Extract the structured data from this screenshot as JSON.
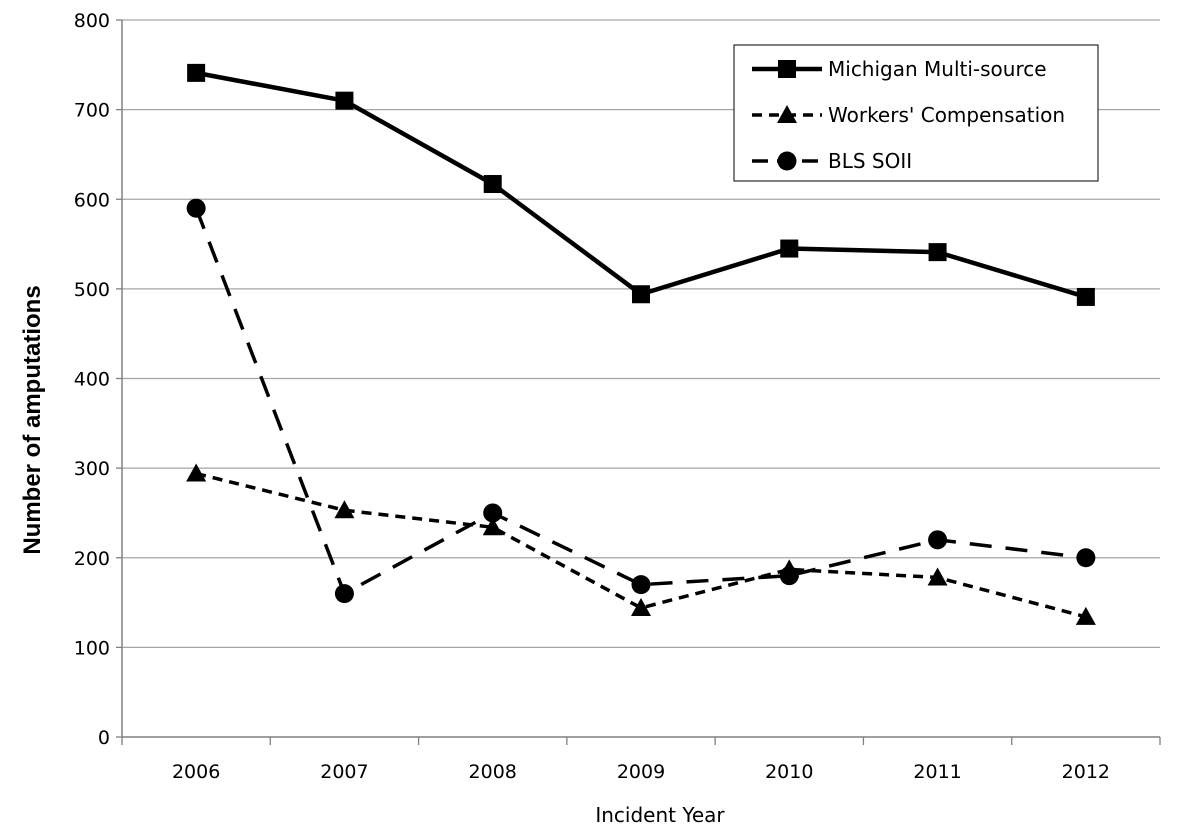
{
  "chart_data": {
    "type": "line",
    "title": "",
    "xlabel": "Incident Year",
    "ylabel": "Number of amputations",
    "categories": [
      "2006",
      "2007",
      "2008",
      "2009",
      "2010",
      "2011",
      "2012"
    ],
    "ylim": [
      0,
      800
    ],
    "yticks": [
      0,
      100,
      200,
      300,
      400,
      500,
      600,
      700,
      800
    ],
    "grid": "horizontal",
    "legend_position": "top-right",
    "series": [
      {
        "name": "Michigan Multi-source",
        "values": [
          741,
          710,
          617,
          494,
          545,
          541,
          491
        ],
        "line": "solid",
        "marker": "square",
        "color": "#000000"
      },
      {
        "name": "Workers' Compensation",
        "values": [
          294,
          253,
          234,
          144,
          187,
          178,
          134
        ],
        "line": "dashed-short",
        "marker": "triangle",
        "color": "#000000"
      },
      {
        "name": "BLS SOII",
        "values": [
          590,
          160,
          250,
          170,
          180,
          220,
          200
        ],
        "line": "dashed-long",
        "marker": "circle",
        "color": "#000000"
      }
    ]
  }
}
